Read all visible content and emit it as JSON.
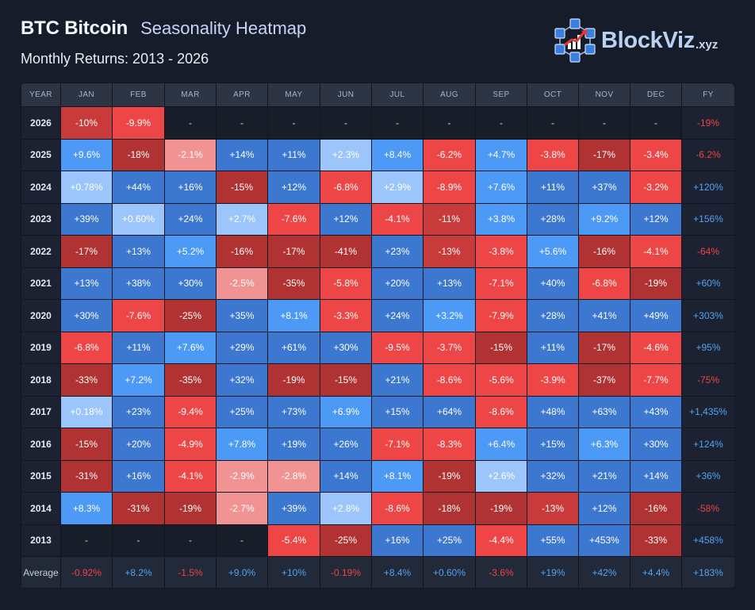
{
  "header": {
    "ticker": "BTC Bitcoin",
    "chart_name": "Seasonality Heatmap",
    "subtitle": "Monthly Returns: 2013 - 2026"
  },
  "brand": {
    "name": "BlockViz",
    "tld": ".xyz"
  },
  "colors": {
    "strong_pos": "#4b8ef5",
    "mid_pos": "#3c78cf",
    "weak_pos": "#4d99f6",
    "faint_pos": "#9cc5fb",
    "strong_neg": "#b03232",
    "mid_neg": "#c93a3a",
    "weak_neg": "#ee4646",
    "faint_neg": "#f19393",
    "fy_pos": "#52a3f5",
    "fy_neg": "#ef4444"
  },
  "chart_data": {
    "type": "heatmap",
    "title": "Seasonality Heatmap",
    "subtitle": "Monthly Returns: 2013 - 2026",
    "unit": "%",
    "columns": [
      "YEAR",
      "JAN",
      "FEB",
      "MAR",
      "APR",
      "MAY",
      "JUN",
      "JUL",
      "AUG",
      "SEP",
      "OCT",
      "NOV",
      "DEC",
      "FY"
    ],
    "rows": [
      {
        "year": "2026",
        "months": [
          "-10%",
          "-9.9%",
          "-",
          "-",
          "-",
          "-",
          "-",
          "-",
          "-",
          "-",
          "-",
          "-"
        ],
        "fy": "-19%"
      },
      {
        "year": "2025",
        "months": [
          "+9.6%",
          "-18%",
          "-2.1%",
          "+14%",
          "+11%",
          "+2.3%",
          "+8.4%",
          "-6.2%",
          "+4.7%",
          "-3.8%",
          "-17%",
          "-3.4%"
        ],
        "fy": "-6.2%"
      },
      {
        "year": "2024",
        "months": [
          "+0.78%",
          "+44%",
          "+16%",
          "-15%",
          "+12%",
          "-6.8%",
          "+2.9%",
          "-8.9%",
          "+7.6%",
          "+11%",
          "+37%",
          "-3.2%"
        ],
        "fy": "+120%"
      },
      {
        "year": "2023",
        "months": [
          "+39%",
          "+0.60%",
          "+24%",
          "+2.7%",
          "-7.6%",
          "+12%",
          "-4.1%",
          "-11%",
          "+3.8%",
          "+28%",
          "+9.2%",
          "+12%"
        ],
        "fy": "+156%"
      },
      {
        "year": "2022",
        "months": [
          "-17%",
          "+13%",
          "+5.2%",
          "-16%",
          "-17%",
          "-41%",
          "+23%",
          "-13%",
          "-3.8%",
          "+5.6%",
          "-16%",
          "-4.1%"
        ],
        "fy": "-64%"
      },
      {
        "year": "2021",
        "months": [
          "+13%",
          "+38%",
          "+30%",
          "-2.5%",
          "-35%",
          "-5.8%",
          "+20%",
          "+13%",
          "-7.1%",
          "+40%",
          "-6.8%",
          "-19%"
        ],
        "fy": "+60%"
      },
      {
        "year": "2020",
        "months": [
          "+30%",
          "-7.6%",
          "-25%",
          "+35%",
          "+8.1%",
          "-3.3%",
          "+24%",
          "+3.2%",
          "-7.9%",
          "+28%",
          "+41%",
          "+49%"
        ],
        "fy": "+303%"
      },
      {
        "year": "2019",
        "months": [
          "-6.8%",
          "+11%",
          "+7.6%",
          "+29%",
          "+61%",
          "+30%",
          "-9.5%",
          "-3.7%",
          "-15%",
          "+11%",
          "-17%",
          "-4.6%"
        ],
        "fy": "+95%"
      },
      {
        "year": "2018",
        "months": [
          "-33%",
          "+7.2%",
          "-35%",
          "+32%",
          "-19%",
          "-15%",
          "+21%",
          "-8.6%",
          "-5.6%",
          "-3.9%",
          "-37%",
          "-7.7%"
        ],
        "fy": "-75%"
      },
      {
        "year": "2017",
        "months": [
          "+0.18%",
          "+23%",
          "-9.4%",
          "+25%",
          "+73%",
          "+6.9%",
          "+15%",
          "+64%",
          "-8.6%",
          "+48%",
          "+63%",
          "+43%"
        ],
        "fy": "+1,435%"
      },
      {
        "year": "2016",
        "months": [
          "-15%",
          "+20%",
          "-4.9%",
          "+7.8%",
          "+19%",
          "+26%",
          "-7.1%",
          "-8.3%",
          "+6.4%",
          "+15%",
          "+6.3%",
          "+30%"
        ],
        "fy": "+124%"
      },
      {
        "year": "2015",
        "months": [
          "-31%",
          "+16%",
          "-4.1%",
          "-2.9%",
          "-2.8%",
          "+14%",
          "+8.1%",
          "-19%",
          "+2.6%",
          "+32%",
          "+21%",
          "+14%"
        ],
        "fy": "+36%"
      },
      {
        "year": "2014",
        "months": [
          "+8.3%",
          "-31%",
          "-19%",
          "-2.7%",
          "+39%",
          "+2.8%",
          "-8.6%",
          "-18%",
          "-19%",
          "-13%",
          "+12%",
          "-16%"
        ],
        "fy": "-58%"
      },
      {
        "year": "2013",
        "months": [
          "-",
          "-",
          "-",
          "-",
          "-5.4%",
          "-25%",
          "+16%",
          "+25%",
          "-4.4%",
          "+55%",
          "+453%",
          "-33%"
        ],
        "fy": "+458%"
      }
    ],
    "average": {
      "label": "Average",
      "months": [
        "-0.92%",
        "+8.2%",
        "-1.5%",
        "+9.0%",
        "+10%",
        "-0.19%",
        "+8.4%",
        "+0.60%",
        "-3.6%",
        "+19%",
        "+42%",
        "+4.4%"
      ],
      "fy": "+183%"
    }
  }
}
